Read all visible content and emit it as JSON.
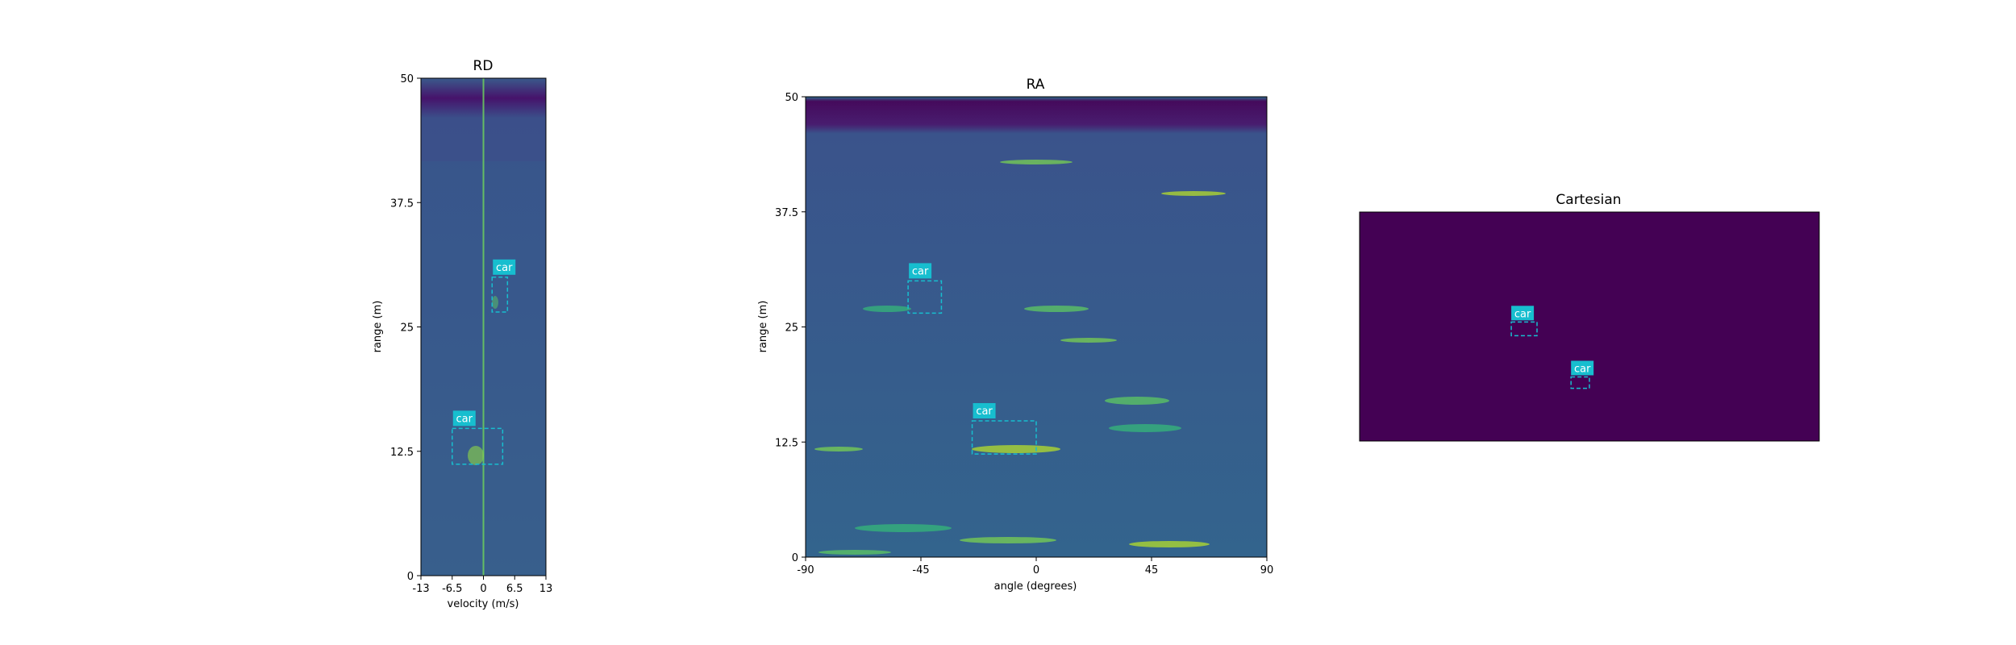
{
  "colors": {
    "accent": "#17becf",
    "bg_dark": "#440154",
    "plot_bg": "#3b5b8c"
  },
  "chart_data": [
    {
      "type": "heatmap",
      "title": "RD",
      "xlabel": "velocity (m/s)",
      "ylabel": "range (m)",
      "xlim": [
        -13,
        13
      ],
      "ylim": [
        0,
        50
      ],
      "xticks": [
        "-13",
        "-6.5",
        "0",
        "6.5",
        "13"
      ],
      "yticks": [
        "0",
        "12.5",
        "25",
        "37.5",
        "50"
      ],
      "detections": [
        {
          "label": "car",
          "x0": 1.8,
          "x1": 5.0,
          "y0": 26.5,
          "y1": 30.0
        },
        {
          "label": "car",
          "x0": -6.5,
          "x1": 4.0,
          "y0": 11.2,
          "y1": 14.8
        }
      ]
    },
    {
      "type": "heatmap",
      "title": "RA",
      "xlabel": "angle (degrees)",
      "ylabel": "range (m)",
      "xlim": [
        -90,
        90
      ],
      "ylim": [
        0,
        50
      ],
      "xticks": [
        "-90",
        "-45",
        "0",
        "45",
        "90"
      ],
      "yticks": [
        "0",
        "12.5",
        "25",
        "37.5",
        "50"
      ],
      "detections": [
        {
          "label": "car",
          "x0": -50,
          "x1": -37,
          "y0": 26.5,
          "y1": 30.0
        },
        {
          "label": "car",
          "x0": -25,
          "x1": 0,
          "y0": 11.2,
          "y1": 14.8
        }
      ]
    },
    {
      "type": "heatmap",
      "title": "Cartesian",
      "xlabel": "",
      "ylabel": "",
      "detections": [
        {
          "label": "car",
          "x0": 0.33,
          "x1": 0.386,
          "y0": 0.48,
          "y1": 0.54
        },
        {
          "label": "car",
          "x0": 0.46,
          "x1": 0.5,
          "y0": 0.72,
          "y1": 0.77
        }
      ]
    }
  ]
}
